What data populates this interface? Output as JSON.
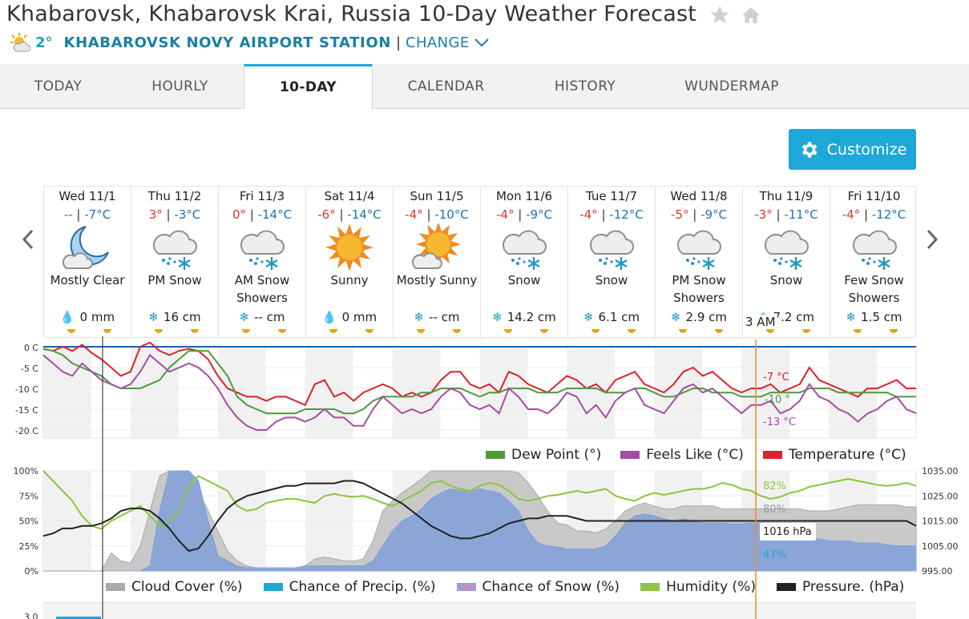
{
  "page": {
    "title": "Khabarovsk, Khabarovsk Krai, Russia 10-Day Weather Forecast",
    "current_temp": "2°",
    "station": "KHABAROVSK NOVY AIRPORT STATION",
    "separator": "|",
    "change": "CHANGE"
  },
  "tabs": [
    {
      "label": "TODAY"
    },
    {
      "label": "HOURLY"
    },
    {
      "label": "10-DAY"
    },
    {
      "label": "CALENDAR"
    },
    {
      "label": "HISTORY"
    },
    {
      "label": "WUNDERMAP"
    }
  ],
  "customize_label": "Customize",
  "days": [
    {
      "date": "Wed 11/1",
      "hi": "--",
      "lo": "-7°C",
      "icon": "moon-cloud-icon",
      "cond": "Mostly Clear",
      "amount": "0 mm",
      "amount_type": "drop"
    },
    {
      "date": "Thu 11/2",
      "hi": "3°",
      "lo": "-3°C",
      "icon": "snow-cloud-icon",
      "cond": "PM Snow",
      "amount": "16 cm",
      "amount_type": "snow"
    },
    {
      "date": "Fri 11/3",
      "hi": "0°",
      "lo": "-14°C",
      "icon": "snow-cloud-icon",
      "cond": "AM Snow Showers",
      "amount": "-- cm",
      "amount_type": "snow"
    },
    {
      "date": "Sat 11/4",
      "hi": "-6°",
      "lo": "-14°C",
      "icon": "sun-icon",
      "cond": "Sunny",
      "amount": "0 mm",
      "amount_type": "drop"
    },
    {
      "date": "Sun 11/5",
      "hi": "-4°",
      "lo": "-10°C",
      "icon": "sun-cloud-icon",
      "cond": "Mostly Sunny",
      "amount": "-- cm",
      "amount_type": "snow"
    },
    {
      "date": "Mon 11/6",
      "hi": "-4°",
      "lo": "-9°C",
      "icon": "snow-cloud-icon",
      "cond": "Snow",
      "amount": "14.2 cm",
      "amount_type": "snow"
    },
    {
      "date": "Tue 11/7",
      "hi": "-4°",
      "lo": "-12°C",
      "icon": "snow-cloud-icon",
      "cond": "Snow",
      "amount": "6.1 cm",
      "amount_type": "snow"
    },
    {
      "date": "Wed 11/8",
      "hi": "-5°",
      "lo": "-9°C",
      "icon": "snow-cloud-icon",
      "cond": "PM Snow Showers",
      "amount": "2.9 cm",
      "amount_type": "snow"
    },
    {
      "date": "Thu 11/9",
      "hi": "-3°",
      "lo": "-11°C",
      "icon": "snow-cloud-icon",
      "cond": "Snow",
      "amount": "7.2 cm",
      "amount_type": "snow"
    },
    {
      "date": "Fri 11/10",
      "hi": "-4°",
      "lo": "-12°C",
      "icon": "snow-cloud-icon",
      "cond": "Few Snow Showers",
      "amount": "1.5 cm",
      "amount_type": "snow"
    }
  ],
  "tooltip": {
    "time": "3 AM",
    "temperature": "-7 °C",
    "dew_point": "-10 °",
    "feels_like": "-13 °C",
    "humidity": "82%",
    "cloud_cover": "80%",
    "pressure": "1016 hPa",
    "precip": "47%"
  },
  "colors": {
    "temperature": "#d9232e",
    "feels_like": "#a64ca6",
    "dew_point": "#4e9a3c",
    "humidity": "#8cc63f",
    "pressure": "#222222",
    "cloud_cover": "#b3b3b3",
    "precip": "#1ea7d8",
    "snow": "#9aa6d6",
    "accent": "#1ea7d8",
    "cursor": "#f08a2c"
  },
  "chart_data": [
    {
      "type": "line",
      "yticks": [
        "0 C",
        "-5 C",
        "-10 C",
        "-15 C",
        "-20 C"
      ],
      "ylim": [
        -20,
        0
      ],
      "legend": [
        "Dew Point (°)",
        "Feels Like (°C)",
        "Temperature (°C)"
      ],
      "freezing_line": 0,
      "series": [
        {
          "name": "Temperature (°C)",
          "values": [
            -0.5,
            -1,
            0,
            -1,
            0.5,
            -1.5,
            -3,
            -5,
            -7,
            -6,
            0,
            1,
            -1,
            -2,
            -1,
            -0.5,
            -1,
            -3,
            -7,
            -10,
            -11,
            -12,
            -12,
            -13,
            -12,
            -12,
            -13,
            -14,
            -9,
            -8,
            -12,
            -11,
            -13,
            -11,
            -10,
            -9,
            -10,
            -12,
            -11,
            -12,
            -11,
            -8,
            -6,
            -6,
            -9,
            -10,
            -9,
            -11,
            -6,
            -7,
            -9,
            -10,
            -11,
            -9,
            -7,
            -8,
            -10,
            -9,
            -11,
            -8,
            -7,
            -6,
            -9,
            -10,
            -11,
            -9,
            -6,
            -5,
            -7,
            -6,
            -8,
            -10,
            -11,
            -10,
            -10,
            -9,
            -11,
            -10,
            -9,
            -5,
            -8,
            -9,
            -10,
            -11,
            -12,
            -10,
            -10,
            -9,
            -8,
            -10,
            -10
          ]
        },
        {
          "name": "Dew Point (°)",
          "values": [
            -0.5,
            -1,
            -2,
            -4,
            -5,
            -6,
            -7,
            -9,
            -10,
            -10,
            -10,
            -9,
            -8,
            -5,
            -3,
            -1,
            -1,
            -1,
            -4,
            -7,
            -12,
            -14,
            -15,
            -16,
            -16,
            -16,
            -16,
            -15,
            -15,
            -15,
            -15,
            -16,
            -16,
            -15,
            -13,
            -12,
            -12,
            -12,
            -12,
            -11,
            -11,
            -10,
            -10,
            -10,
            -11,
            -12,
            -11,
            -11,
            -10,
            -10,
            -10,
            -11,
            -11,
            -11,
            -10,
            -10,
            -10,
            -10,
            -11,
            -11,
            -11,
            -10,
            -10,
            -11,
            -12,
            -12,
            -11,
            -10,
            -10,
            -11,
            -11,
            -11,
            -12,
            -12,
            -12,
            -11,
            -11,
            -11,
            -11,
            -10,
            -10,
            -10,
            -11,
            -11,
            -11,
            -11,
            -11,
            -11,
            -12,
            -12,
            -12
          ]
        },
        {
          "name": "Feels Like (°C)",
          "values": [
            -2,
            -4,
            -6,
            -7,
            -4,
            -6,
            -8,
            -9,
            -10,
            -9,
            -6,
            -2,
            -4,
            -6,
            -5,
            -4,
            -5,
            -7,
            -10,
            -14,
            -17,
            -19,
            -20,
            -20,
            -18,
            -17,
            -17,
            -18,
            -17,
            -15,
            -17,
            -17,
            -19,
            -19,
            -15,
            -12,
            -14,
            -16,
            -15,
            -16,
            -15,
            -12,
            -10,
            -11,
            -14,
            -15,
            -14,
            -16,
            -10,
            -12,
            -15,
            -15,
            -16,
            -14,
            -11,
            -12,
            -16,
            -14,
            -17,
            -13,
            -11,
            -10,
            -14,
            -15,
            -16,
            -13,
            -10,
            -9,
            -11,
            -10,
            -12,
            -14,
            -16,
            -14,
            -14,
            -13,
            -16,
            -15,
            -13,
            -9,
            -12,
            -13,
            -15,
            -16,
            -18,
            -16,
            -15,
            -13,
            -12,
            -15,
            -16
          ]
        }
      ]
    },
    {
      "type": "area",
      "yticks_left": [
        "100%",
        "75%",
        "50%",
        "25%",
        "0%"
      ],
      "yticks_right": [
        "1035.00",
        "1025.00",
        "1015.00",
        "1005.00",
        "995.00"
      ],
      "ylim_left": [
        0,
        100
      ],
      "ylim_right": [
        995,
        1035
      ],
      "legend": [
        "Cloud Cover (%)",
        "Chance of Precip. (%)",
        "Chance of Snow (%)",
        "Humidity (%)",
        "Pressure. (hPa)"
      ],
      "series": [
        {
          "name": "Cloud Cover (%)",
          "values": [
            0,
            0,
            0,
            0,
            0,
            0,
            0,
            18,
            10,
            8,
            25,
            60,
            95,
            100,
            100,
            95,
            80,
            60,
            40,
            20,
            10,
            5,
            3,
            3,
            3,
            3,
            3,
            5,
            12,
            14,
            12,
            10,
            10,
            12,
            30,
            60,
            70,
            78,
            85,
            92,
            100,
            100,
            100,
            100,
            100,
            100,
            100,
            100,
            100,
            98,
            88,
            75,
            60,
            48,
            46,
            40,
            40,
            38,
            42,
            50,
            60,
            65,
            68,
            65,
            62,
            62,
            65,
            65,
            65,
            65,
            62,
            62,
            62,
            62,
            62,
            62,
            62,
            62,
            62,
            60,
            60,
            60,
            62,
            64,
            66,
            66,
            66,
            66,
            66,
            64,
            64
          ]
        },
        {
          "name": "Chance of Precip. (%)",
          "values": [
            0,
            0,
            0,
            0,
            0,
            0,
            0,
            0,
            0,
            0,
            0,
            5,
            60,
            100,
            100,
            100,
            90,
            50,
            15,
            10,
            5,
            3,
            3,
            3,
            3,
            3,
            3,
            5,
            5,
            5,
            5,
            5,
            5,
            5,
            10,
            25,
            40,
            50,
            55,
            62,
            72,
            78,
            82,
            80,
            80,
            82,
            80,
            78,
            70,
            60,
            40,
            28,
            25,
            24,
            22,
            22,
            22,
            22,
            25,
            35,
            48,
            55,
            57,
            55,
            52,
            50,
            52,
            50,
            48,
            48,
            48,
            47,
            47,
            48,
            48,
            40,
            40,
            38,
            35,
            32,
            32,
            30,
            30,
            30,
            28,
            28,
            28,
            26,
            25,
            25,
            25
          ]
        },
        {
          "name": "Chance of Snow (%)",
          "values": [
            0,
            0,
            0,
            0,
            0,
            0,
            0,
            0,
            0,
            0,
            0,
            5,
            60,
            100,
            100,
            100,
            90,
            50,
            15,
            10,
            5,
            3,
            3,
            3,
            3,
            3,
            3,
            5,
            5,
            5,
            5,
            5,
            5,
            5,
            10,
            25,
            40,
            50,
            55,
            62,
            72,
            78,
            82,
            80,
            80,
            82,
            80,
            78,
            70,
            60,
            40,
            28,
            25,
            24,
            22,
            22,
            22,
            22,
            25,
            35,
            48,
            55,
            57,
            55,
            52,
            50,
            52,
            50,
            48,
            48,
            48,
            47,
            47,
            48,
            48,
            40,
            40,
            38,
            35,
            32,
            32,
            30,
            30,
            30,
            28,
            28,
            28,
            26,
            25,
            25,
            25
          ]
        },
        {
          "name": "Humidity (%)",
          "values": [
            100,
            90,
            80,
            70,
            55,
            45,
            42,
            50,
            55,
            60,
            65,
            55,
            45,
            50,
            60,
            85,
            95,
            90,
            85,
            80,
            65,
            60,
            62,
            68,
            70,
            72,
            72,
            70,
            68,
            75,
            77,
            75,
            74,
            75,
            72,
            68,
            65,
            70,
            75,
            80,
            88,
            90,
            85,
            82,
            80,
            85,
            88,
            86,
            80,
            72,
            70,
            72,
            75,
            76,
            78,
            80,
            78,
            80,
            82,
            75,
            72,
            70,
            75,
            78,
            76,
            78,
            80,
            82,
            82,
            84,
            88,
            86,
            82,
            80,
            75,
            72,
            74,
            78,
            80,
            84,
            86,
            88,
            90,
            92,
            90,
            88,
            86,
            85,
            86,
            88,
            85
          ]
        },
        {
          "name": "Pressure. (hPa)",
          "values": [
            1009,
            1010,
            1012,
            1012,
            1013,
            1013,
            1014,
            1016,
            1019,
            1020,
            1020,
            1019,
            1016,
            1012,
            1007,
            1003,
            1004,
            1009,
            1015,
            1020,
            1023,
            1025,
            1026,
            1027,
            1028,
            1029,
            1029,
            1030,
            1030,
            1030,
            1030,
            1031,
            1031,
            1030,
            1028,
            1026,
            1024,
            1022,
            1019,
            1016,
            1013,
            1011,
            1009,
            1008,
            1008,
            1009,
            1010,
            1012,
            1014,
            1015,
            1016,
            1016,
            1017,
            1017,
            1017,
            1016,
            1015,
            1015,
            1015,
            1015,
            1015,
            1015,
            1015,
            1015,
            1015,
            1015,
            1015,
            1015,
            1015,
            1015,
            1015,
            1015,
            1015,
            1015,
            1015,
            1015,
            1015,
            1015,
            1015,
            1015,
            1015,
            1015,
            1015,
            1015,
            1015,
            1015,
            1015,
            1015,
            1015,
            1015,
            1013
          ]
        }
      ]
    }
  ],
  "bottom_tick": "3.0"
}
